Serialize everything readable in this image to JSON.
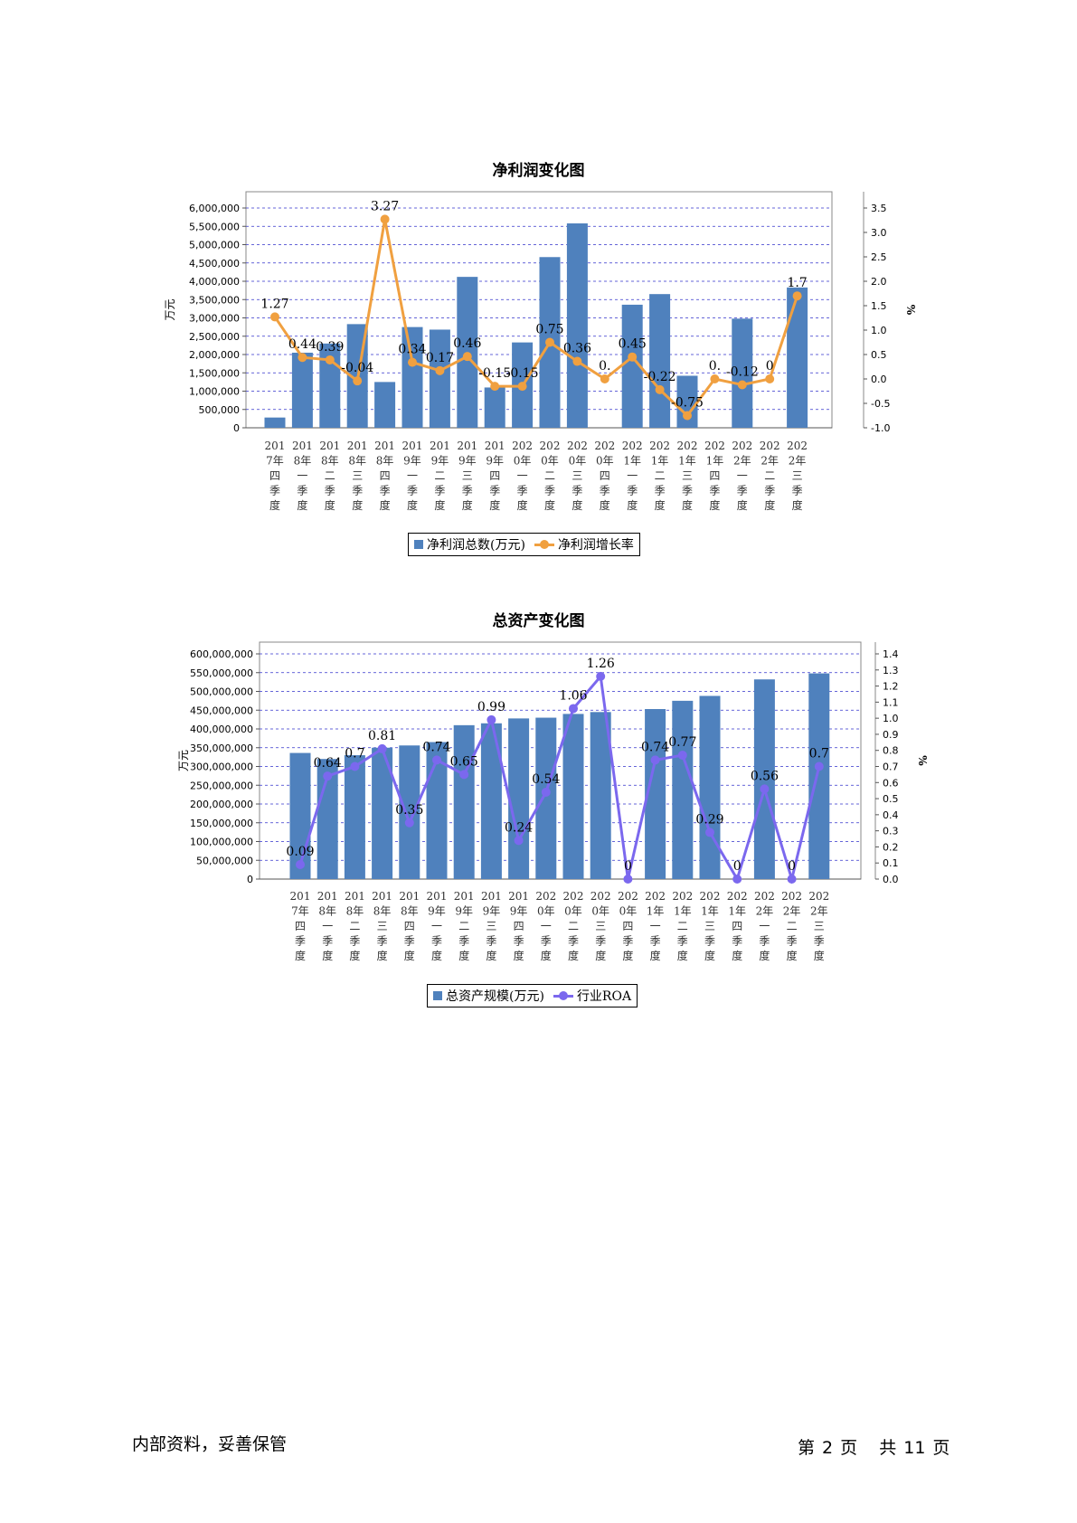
{
  "chart_data": [
    {
      "type": "bar",
      "title": "净利润变化图",
      "ylabel": "万元",
      "y2label": "%",
      "ylim": [
        0,
        6000000
      ],
      "yticks": [
        "0",
        "500,000",
        "1,000,000",
        "1,500,000",
        "2,000,000",
        "2,500,000",
        "3,000,000",
        "3,500,000",
        "4,000,000",
        "4,500,000",
        "5,000,000",
        "5,500,000",
        "6,000,000"
      ],
      "y2lim": [
        -1.0,
        3.5
      ],
      "y2ticks": [
        "-1.0",
        "-0.5",
        "0.0",
        "0.5",
        "1.0",
        "1.5",
        "2.0",
        "2.5",
        "3.0",
        "3.5"
      ],
      "categories": [
        [
          "201",
          "7年",
          "四",
          "季",
          "度"
        ],
        [
          "201",
          "8年",
          "一",
          "季",
          "度"
        ],
        [
          "201",
          "8年",
          "二",
          "季",
          "度"
        ],
        [
          "201",
          "8年",
          "三",
          "季",
          "度"
        ],
        [
          "201",
          "8年",
          "四",
          "季",
          "度"
        ],
        [
          "201",
          "9年",
          "一",
          "季",
          "度"
        ],
        [
          "201",
          "9年",
          "二",
          "季",
          "度"
        ],
        [
          "201",
          "9年",
          "三",
          "季",
          "度"
        ],
        [
          "201",
          "9年",
          "四",
          "季",
          "度"
        ],
        [
          "202",
          "0年",
          "一",
          "季",
          "度"
        ],
        [
          "202",
          "0年",
          "二",
          "季",
          "度"
        ],
        [
          "202",
          "0年",
          "三",
          "季",
          "度"
        ],
        [
          "202",
          "0年",
          "四",
          "季",
          "度"
        ],
        [
          "202",
          "1年",
          "一",
          "季",
          "度"
        ],
        [
          "202",
          "1年",
          "二",
          "季",
          "度"
        ],
        [
          "202",
          "1年",
          "三",
          "季",
          "度"
        ],
        [
          "202",
          "1年",
          "四",
          "季",
          "度"
        ],
        [
          "202",
          "2年",
          "一",
          "季",
          "度"
        ],
        [
          "202",
          "2年",
          "二",
          "季",
          "度"
        ],
        [
          "202",
          "2年",
          "三",
          "季",
          "度"
        ]
      ],
      "series": [
        {
          "name": "净利润总数(万元)",
          "type": "bar",
          "axis": "left",
          "color": "#4f81bd",
          "values": [
            280000,
            2050000,
            2300000,
            2830000,
            1250000,
            2750000,
            2680000,
            4120000,
            1100000,
            2330000,
            4660000,
            5580000,
            0,
            3360000,
            3650000,
            1420000,
            0,
            2980000,
            0,
            3830000
          ]
        },
        {
          "name": "净利润增长率",
          "type": "line",
          "axis": "right",
          "color": "#f0a040",
          "values": [
            1.27,
            0.44,
            0.39,
            -0.04,
            3.27,
            0.34,
            0.17,
            0.46,
            -0.15,
            -0.15,
            0.75,
            0.36,
            0,
            0.45,
            -0.22,
            -0.75,
            0,
            -0.12,
            0,
            1.7
          ],
          "labels": [
            "1.27",
            "0.44",
            "0.39",
            "-0.04",
            "3.27",
            "0.34",
            "0.17",
            "0.46",
            "-0.15",
            "-0.15",
            "0.75",
            "0.36",
            "0.",
            "0.45",
            "-0.22",
            "-0.75",
            "0.",
            "-0.12",
            "0",
            "1.7"
          ]
        }
      ],
      "grid": true,
      "legend": "bottom"
    },
    {
      "type": "bar",
      "title": "总资产变化图",
      "ylabel": "万元",
      "y2label": "%",
      "ylim": [
        0,
        600000000
      ],
      "yticks": [
        "0",
        "50,000,000",
        "100,000,000",
        "150,000,000",
        "200,000,000",
        "250,000,000",
        "300,000,000",
        "350,000,000",
        "400,000,000",
        "450,000,000",
        "500,000,000",
        "550,000,000",
        "600,000,000"
      ],
      "y2lim": [
        0.0,
        1.4
      ],
      "y2ticks": [
        "0.0",
        "0.1",
        "0.2",
        "0.3",
        "0.4",
        "0.5",
        "0.6",
        "0.7",
        "0.8",
        "0.9",
        "1.0",
        "1.1",
        "1.2",
        "1.3",
        "1.4"
      ],
      "categories": [
        [
          "201",
          "7年",
          "四",
          "季",
          "度"
        ],
        [
          "201",
          "8年",
          "一",
          "季",
          "度"
        ],
        [
          "201",
          "8年",
          "二",
          "季",
          "度"
        ],
        [
          "201",
          "8年",
          "三",
          "季",
          "度"
        ],
        [
          "201",
          "8年",
          "四",
          "季",
          "度"
        ],
        [
          "201",
          "9年",
          "一",
          "季",
          "度"
        ],
        [
          "201",
          "9年",
          "二",
          "季",
          "度"
        ],
        [
          "201",
          "9年",
          "三",
          "季",
          "度"
        ],
        [
          "201",
          "9年",
          "四",
          "季",
          "度"
        ],
        [
          "202",
          "0年",
          "一",
          "季",
          "度"
        ],
        [
          "202",
          "0年",
          "二",
          "季",
          "度"
        ],
        [
          "202",
          "0年",
          "三",
          "季",
          "度"
        ],
        [
          "202",
          "0年",
          "四",
          "季",
          "度"
        ],
        [
          "202",
          "1年",
          "一",
          "季",
          "度"
        ],
        [
          "202",
          "1年",
          "二",
          "季",
          "度"
        ],
        [
          "202",
          "1年",
          "三",
          "季",
          "度"
        ],
        [
          "202",
          "1年",
          "四",
          "季",
          "度"
        ],
        [
          "202",
          "2年",
          "一",
          "季",
          "度"
        ],
        [
          "202",
          "2年",
          "二",
          "季",
          "度"
        ],
        [
          "202",
          "2年",
          "三",
          "季",
          "度"
        ]
      ],
      "series": [
        {
          "name": "总资产规模(万元)",
          "type": "bar",
          "axis": "left",
          "color": "#4f81bd",
          "values": [
            336000000,
            320000000,
            330000000,
            350000000,
            356000000,
            365000000,
            410000000,
            415000000,
            428000000,
            430000000,
            440000000,
            445000000,
            0,
            453000000,
            475000000,
            488000000,
            0,
            532000000,
            0,
            548000000
          ]
        },
        {
          "name": "行业ROA",
          "type": "line",
          "axis": "right",
          "color": "#7b68ee",
          "values": [
            0.09,
            0.64,
            0.7,
            0.81,
            0.35,
            0.74,
            0.65,
            0.99,
            0.24,
            0.54,
            1.06,
            1.26,
            0,
            0.74,
            0.77,
            0.29,
            0,
            0.56,
            0,
            0.7
          ],
          "labels": [
            "0.09",
            "0.64",
            "0.7",
            "0.81",
            "0.35",
            "0.74",
            "0.65",
            "0.99",
            "0.24",
            "0.54",
            "1.06",
            "1.26",
            "0",
            "0.74",
            "0.77",
            "0.29",
            "0",
            "0.56",
            "0",
            "0.7"
          ]
        }
      ],
      "grid": true,
      "legend": "bottom"
    }
  ],
  "footer": {
    "left": "内部资料，妥善保管",
    "page_prefix": "第",
    "page_current": "2",
    "page_word": "页",
    "total_prefix": "共",
    "page_total": "11",
    "total_word": "页"
  }
}
